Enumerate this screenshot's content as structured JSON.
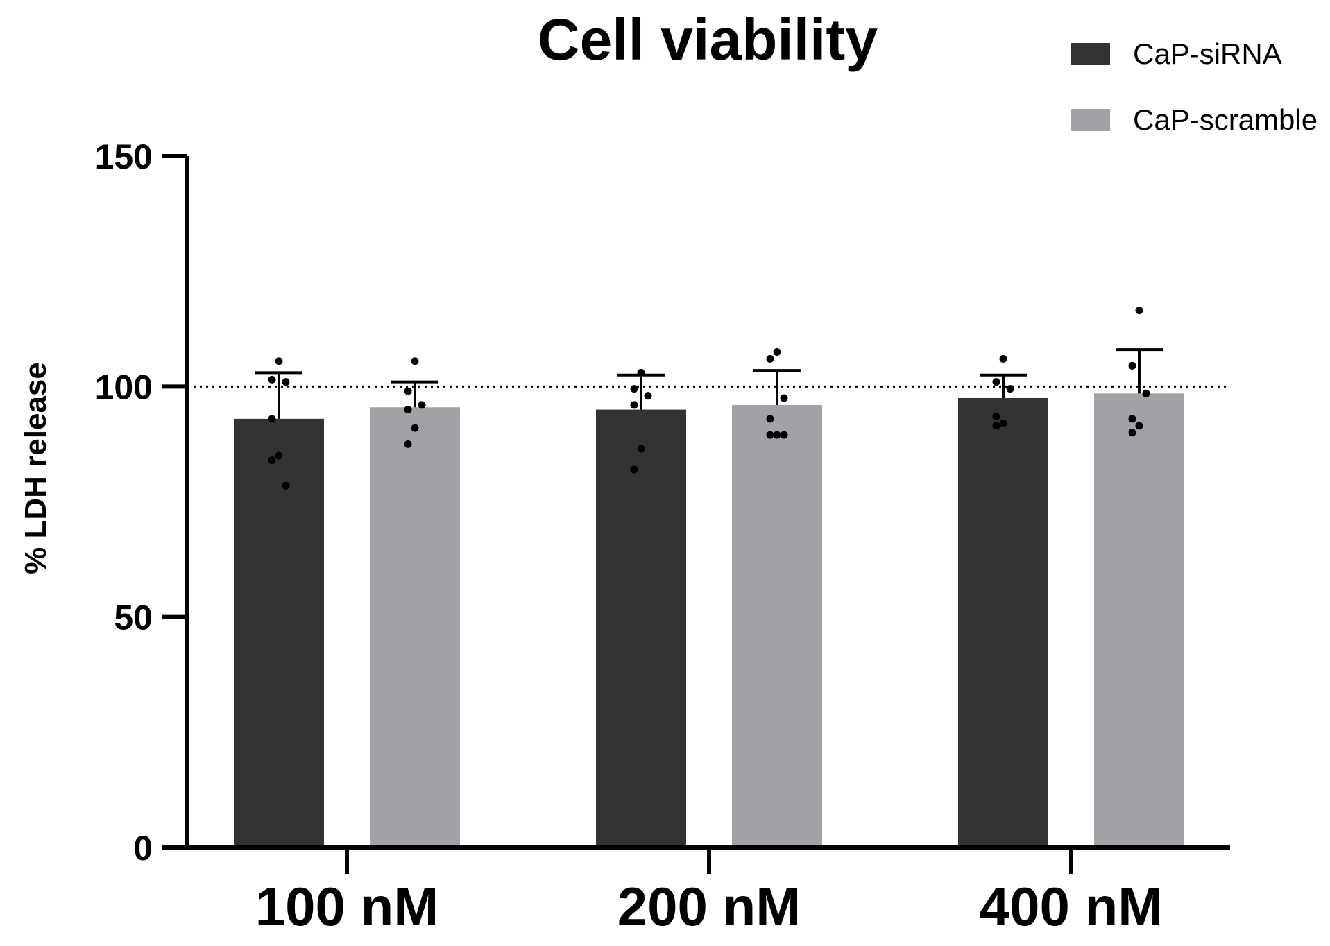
{
  "chart_data": {
    "type": "bar",
    "title": "Cell viability",
    "xlabel": "",
    "ylabel": "% LDH release",
    "ylim": [
      0,
      150
    ],
    "yticks": [
      "0",
      "50",
      "100",
      "150"
    ],
    "reference_line": 100,
    "categories": [
      "100 nM",
      "200 nM",
      "400 nM"
    ],
    "legend_position": "top-right",
    "series": [
      {
        "name": "CaP-siRNA",
        "color": "#333333",
        "values": [
          93,
          95,
          97.5
        ],
        "errors": [
          10,
          7.5,
          5
        ],
        "points": [
          [
            105.5,
            101.5,
            101,
            93,
            85,
            84,
            78.5
          ],
          [
            103,
            99.5,
            98,
            96,
            86.5,
            82
          ],
          [
            106,
            101,
            99.5,
            93.5,
            92,
            91.5
          ]
        ]
      },
      {
        "name": "CaP-scramble",
        "color": "#a2a1a5",
        "values": [
          95.5,
          96,
          98.5
        ],
        "errors": [
          5.5,
          7.5,
          9.5
        ],
        "points": [
          [
            105.5,
            99,
            96,
            95,
            91,
            87.5
          ],
          [
            107.5,
            106,
            97.5,
            93,
            89.5,
            89.5,
            89.5
          ],
          [
            116.5,
            104.5,
            98.5,
            93,
            91.5,
            90
          ]
        ]
      }
    ]
  }
}
